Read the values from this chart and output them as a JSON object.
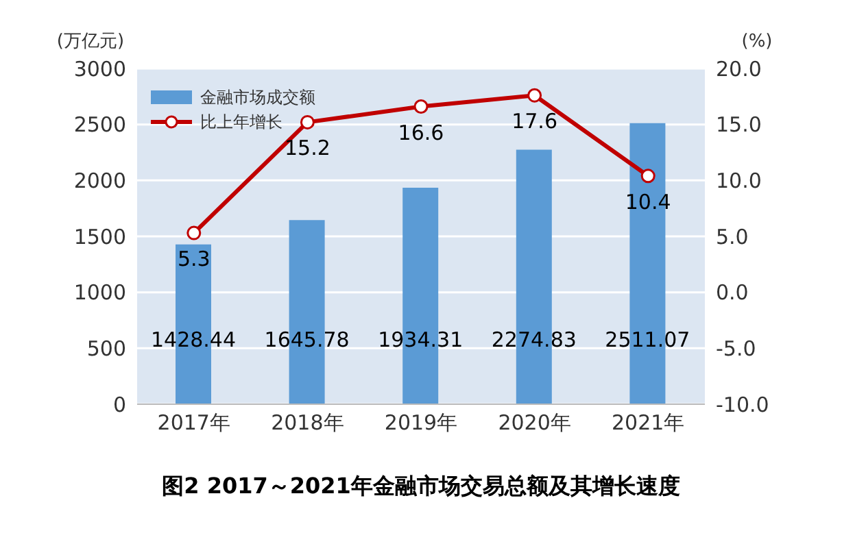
{
  "chart_data": {
    "type": "bar",
    "title": "图2 2017～2021年金融市场交易总额及其增长速度",
    "ylabel": "(万亿元)",
    "y2label": "(%)",
    "categories": [
      "2017年",
      "2018年",
      "2019年",
      "2020年",
      "2021年"
    ],
    "series": [
      {
        "name": "金融市场成交额",
        "color": "#5b9bd5",
        "values": [
          1428.44,
          1645.78,
          1934.31,
          2274.83,
          2511.07
        ]
      },
      {
        "name": "比上年增长",
        "type": "line",
        "axis": "y2",
        "color": "#c00000",
        "marker": "circle",
        "values": [
          5.3,
          15.2,
          16.6,
          17.6,
          10.4
        ]
      }
    ],
    "ylim": [
      0,
      3000
    ],
    "yticks": [
      0,
      500,
      1000,
      1500,
      2000,
      2500,
      3000
    ],
    "y2lim": [
      -10,
      20
    ],
    "y2ticks": [
      {
        "value": -10,
        "label": "-10.0"
      },
      {
        "value": -5,
        "label": "-5.0"
      },
      {
        "value": 0,
        "label": "0.0"
      },
      {
        "value": 5,
        "label": "5.0"
      },
      {
        "value": 10,
        "label": "10.0"
      },
      {
        "value": 15,
        "label": "15.0"
      },
      {
        "value": 20,
        "label": "20.0"
      }
    ],
    "grid": "y",
    "legend": "top left",
    "data_labels": true
  }
}
